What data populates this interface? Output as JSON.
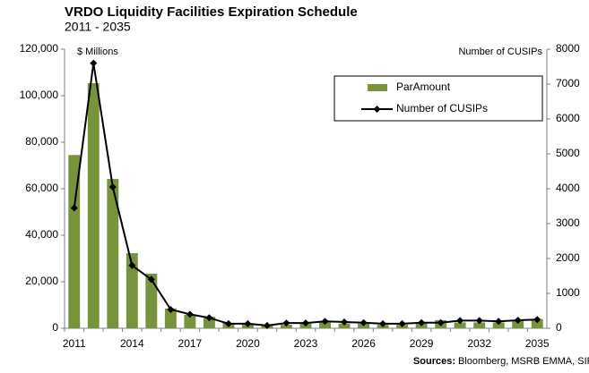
{
  "chart_data": {
    "type": "bar_line",
    "title": "VRDO Liquidity Facilities Expiration Schedule",
    "subtitle": "2011 - 2035",
    "ylabel": "$ Millions",
    "y2label": "Number of CUSIPs",
    "source_label": "Sources:",
    "source": "Bloomberg, MSRB EMMA, SIFMA",
    "categories": [
      "2011",
      null,
      null,
      "2014",
      null,
      null,
      "2017",
      null,
      null,
      "2020",
      null,
      null,
      "2023",
      null,
      null,
      "2026",
      null,
      null,
      "2029",
      null,
      null,
      "2032",
      null,
      null,
      "2035"
    ],
    "series": [
      {
        "name": "ParAmount",
        "type": "bar",
        "color": "#77933c",
        "values": [
          74500,
          105400,
          64200,
          32300,
          23500,
          8500,
          5800,
          5000,
          2300,
          2000,
          1500,
          1500,
          2000,
          2500,
          2000,
          2000,
          1500,
          1500,
          2500,
          3500,
          2500,
          2500,
          2500,
          3500,
          4000
        ]
      },
      {
        "name": "Number of CUSIPs",
        "type": "line",
        "axis": "y2",
        "color": "#000000",
        "values": [
          3450,
          7600,
          4050,
          1800,
          1400,
          540,
          400,
          300,
          130,
          130,
          80,
          150,
          150,
          200,
          180,
          160,
          130,
          130,
          160,
          160,
          220,
          220,
          200,
          230,
          250
        ]
      }
    ],
    "ylim": [
      0,
      120000
    ],
    "yticks": [
      0,
      {
        "value": 20000,
        "label": "20,000"
      },
      {
        "value": 40000,
        "label": "40,000"
      },
      {
        "value": 60000,
        "label": "60,000"
      },
      {
        "value": 80000,
        "label": "80,000"
      },
      {
        "value": 100000,
        "label": "100,000"
      },
      {
        "value": 120000,
        "label": "120,000"
      }
    ],
    "y2lim": [
      0,
      8000
    ],
    "y2ticks": [
      0,
      1000,
      2000,
      3000,
      4000,
      5000,
      6000,
      7000,
      8000
    ],
    "grid": false,
    "legend": "upper right"
  }
}
